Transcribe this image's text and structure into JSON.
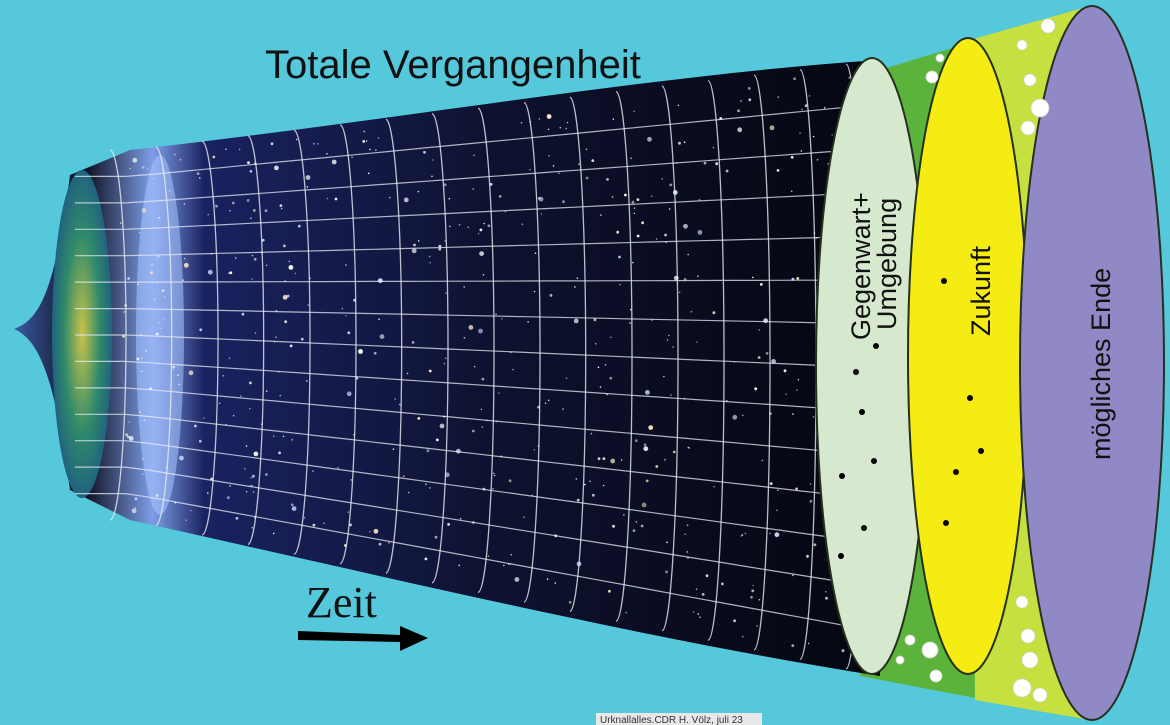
{
  "title": "Totale Vergangenheit",
  "regions": {
    "present_line1": "Gegenwart+",
    "present_line2": "Umgebung",
    "future": "Zukunft",
    "end": "mögliches Ende"
  },
  "time_label": "Zeit",
  "credit": "Urknallalles.CDR  H. Völz, juli 23",
  "colors": {
    "background": "#55c8dc",
    "space": "#0c0e24",
    "grid": "#e6ecf4",
    "present_fill": "#d6e9cf",
    "future_fill": "#f4ec12",
    "end_fill": "#9089c6",
    "cone_green": "#5cb33c",
    "cone_yellow_green": "#c6e040",
    "arrow": "#000000",
    "text": "#111111"
  }
}
